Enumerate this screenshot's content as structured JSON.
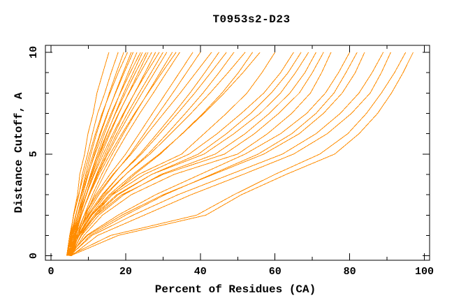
{
  "window": {
    "background": "#ffffff"
  },
  "chart_data": {
    "type": "line",
    "title": "T0953s2-D23",
    "xlabel": "Percent of Residues (CA)",
    "ylabel": "Distance Cutoff, A",
    "grid": false,
    "legend": "none",
    "background": "#ffffff",
    "axis_color": "#000000",
    "line_color": "#ff8c00",
    "xlim": [
      -1.5,
      101.4
    ],
    "ylim": [
      -0.22,
      10.34
    ],
    "x_major_ticks": [
      0,
      20,
      40,
      60,
      80,
      100
    ],
    "x_minor_ticks": [
      10,
      30,
      50,
      70,
      90
    ],
    "x_tick_labels": [
      "0",
      "20",
      "40",
      "60",
      "80",
      "100"
    ],
    "y_major_ticks": [
      0,
      5,
      10
    ],
    "y_minor_ticks": [
      1,
      2,
      3,
      4,
      6,
      7,
      8,
      9
    ],
    "y_tick_labels": [
      "0",
      "5",
      "10"
    ],
    "y_points": [
      0,
      1,
      2,
      3,
      4,
      5,
      6,
      7,
      8,
      9,
      10
    ],
    "series": [
      [
        4.6,
        5.3,
        6.0,
        7.1,
        7.7,
        9.0,
        9.9,
        11.3,
        12.3,
        13.9,
        15.5
      ],
      [
        4.4,
        5.2,
        6.1,
        7.5,
        8.4,
        9.8,
        11.1,
        12.5,
        14.4,
        16.1,
        18.0
      ],
      [
        4.8,
        5.6,
        6.7,
        8.0,
        9.3,
        10.7,
        12.2,
        13.9,
        15.6,
        17.5,
        19.5
      ],
      [
        4.2,
        5.0,
        6.1,
        7.4,
        8.8,
        10.3,
        11.9,
        13.7,
        15.8,
        18.0,
        20.5
      ],
      [
        5.0,
        5.9,
        7.1,
        8.5,
        10.0,
        11.6,
        13.3,
        15.2,
        17.2,
        19.3,
        21.5
      ],
      [
        4.5,
        5.4,
        6.6,
        8.0,
        9.6,
        11.3,
        13.1,
        15.1,
        17.3,
        19.6,
        22.0
      ],
      [
        5.2,
        6.2,
        7.5,
        9.0,
        10.6,
        12.4,
        14.3,
        16.4,
        18.5,
        20.7,
        23.0
      ],
      [
        4.3,
        5.3,
        6.6,
        8.2,
        9.9,
        11.8,
        13.9,
        16.1,
        18.6,
        21.2,
        24.0
      ],
      [
        5.5,
        6.5,
        7.8,
        9.4,
        11.1,
        13.0,
        15.0,
        17.2,
        19.5,
        22.0,
        24.5
      ],
      [
        4.7,
        5.8,
        7.2,
        8.9,
        10.7,
        12.7,
        14.9,
        17.3,
        19.9,
        22.6,
        25.5
      ],
      [
        5.1,
        6.3,
        7.8,
        9.5,
        11.4,
        13.5,
        15.8,
        18.2,
        20.8,
        23.4,
        26.0
      ],
      [
        4.4,
        5.6,
        7.1,
        8.9,
        10.9,
        13.1,
        15.5,
        18.1,
        20.9,
        23.9,
        27.0
      ],
      [
        5.3,
        6.6,
        8.2,
        10.1,
        12.2,
        14.5,
        17.0,
        19.6,
        22.4,
        25.2,
        28.0
      ],
      [
        4.6,
        5.9,
        7.5,
        9.4,
        11.6,
        14.0,
        16.6,
        19.4,
        22.4,
        25.6,
        29.0
      ],
      [
        5.0,
        6.4,
        8.1,
        10.1,
        12.4,
        14.9,
        17.6,
        20.5,
        23.6,
        26.8,
        30.0
      ],
      [
        4.8,
        6.3,
        8.1,
        10.2,
        12.6,
        15.2,
        18.1,
        21.2,
        24.4,
        27.7,
        31.0
      ],
      [
        5.4,
        7.0,
        8.9,
        11.1,
        13.6,
        16.4,
        19.4,
        22.6,
        25.9,
        29.2,
        32.5
      ],
      [
        4.5,
        6.1,
        8.0,
        10.3,
        12.9,
        15.8,
        19.0,
        22.4,
        26.0,
        29.7,
        33.5
      ],
      [
        5.6,
        7.3,
        9.3,
        11.6,
        14.3,
        17.2,
        20.4,
        23.8,
        27.4,
        30.9,
        34.5
      ],
      [
        4.9,
        6.6,
        8.9,
        12.0,
        15.8,
        20.0,
        23.6,
        27.2,
        30.8,
        34.4,
        38.0
      ],
      [
        5.2,
        7.0,
        9.5,
        12.8,
        16.8,
        21.2,
        25.0,
        28.8,
        32.6,
        36.3,
        40.0
      ],
      [
        4.6,
        6.5,
        9.0,
        12.4,
        16.6,
        21.5,
        25.8,
        30.2,
        34.6,
        38.8,
        43.0
      ],
      [
        5.4,
        7.4,
        10.2,
        14.0,
        18.6,
        23.8,
        28.4,
        32.9,
        37.2,
        41.2,
        45.0
      ],
      [
        4.8,
        6.9,
        9.8,
        13.7,
        18.6,
        24.2,
        29.1,
        33.9,
        38.5,
        42.8,
        47.0
      ],
      [
        5.1,
        7.4,
        10.6,
        14.8,
        20.0,
        26.0,
        31.1,
        36.0,
        40.7,
        45.0,
        49.0
      ],
      [
        4.5,
        6.8,
        10.0,
        14.4,
        20.0,
        26.5,
        32.1,
        37.5,
        42.6,
        47.4,
        52.0
      ],
      [
        5.5,
        8.0,
        11.6,
        16.4,
        22.4,
        29.3,
        35.1,
        40.7,
        45.8,
        50.2,
        54.0
      ],
      [
        4.7,
        7.2,
        10.8,
        15.6,
        21.9,
        29.0,
        35.2,
        41.0,
        46.4,
        51.4,
        56.0
      ],
      [
        5.0,
        7.5,
        11.0,
        16.0,
        23.5,
        35.0,
        41.0,
        47.0,
        52.5,
        56.5,
        60.0
      ],
      [
        4.6,
        7.2,
        11.0,
        16.5,
        25.0,
        37.0,
        44.5,
        51.0,
        57.0,
        61.5,
        65.0
      ],
      [
        5.3,
        8.0,
        12.0,
        18.0,
        27.0,
        39.5,
        47.0,
        53.5,
        59.0,
        63.5,
        67.0
      ],
      [
        4.8,
        7.6,
        11.6,
        17.6,
        27.0,
        41.0,
        49.0,
        56.0,
        61.5,
        65.5,
        69.0
      ],
      [
        5.1,
        8.2,
        12.8,
        19.5,
        29.5,
        44.0,
        52.0,
        58.5,
        64.0,
        68.0,
        71.0
      ],
      [
        4.5,
        7.6,
        12.2,
        19.0,
        30.0,
        46.5,
        54.5,
        61.0,
        66.5,
        70.0,
        73.0
      ],
      [
        5.4,
        8.8,
        13.8,
        21.5,
        33.0,
        50.0,
        58.0,
        64.5,
        69.5,
        72.5,
        75.0
      ],
      [
        4.9,
        9.5,
        18.0,
        28.0,
        40.0,
        52.0,
        61.5,
        68.5,
        73.5,
        77.0,
        80.0
      ],
      [
        5.2,
        10.5,
        20.0,
        30.5,
        43.0,
        55.5,
        64.5,
        71.0,
        75.8,
        79.0,
        82.0
      ],
      [
        4.6,
        9.8,
        19.0,
        30.0,
        43.5,
        57.0,
        66.5,
        73.0,
        78.0,
        81.5,
        84.0
      ],
      [
        5.0,
        11.0,
        22.0,
        34.0,
        48.0,
        62.0,
        71.0,
        77.5,
        82.5,
        86.0,
        89.0
      ],
      [
        5.5,
        12.5,
        25.0,
        37.5,
        51.5,
        65.0,
        74.0,
        80.5,
        85.5,
        88.5,
        91.0
      ],
      [
        4.8,
        16.0,
        39.0,
        49.0,
        60.0,
        72.0,
        79.5,
        84.5,
        88.5,
        92.0,
        95.0
      ],
      [
        5.2,
        18.0,
        41.5,
        51.0,
        63.0,
        76.0,
        82.5,
        87.5,
        91.2,
        94.3,
        97.0
      ]
    ]
  }
}
